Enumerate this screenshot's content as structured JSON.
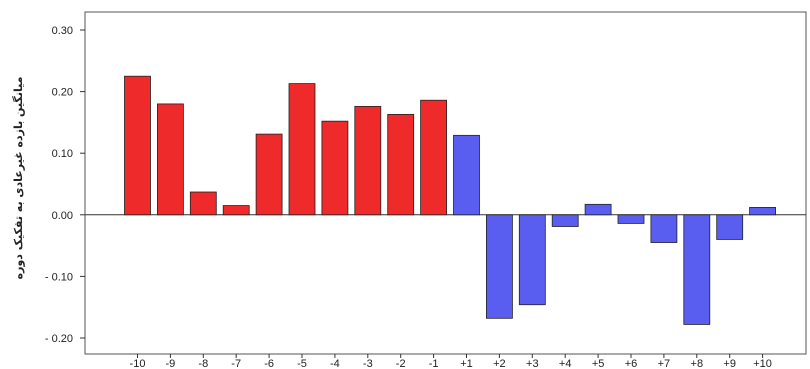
{
  "chart_data": {
    "type": "bar",
    "title": "",
    "xlabel": "",
    "ylabel": "میانگین بازده غیرعادی به تفکیک دوره",
    "ylim": [
      -0.22,
      0.32
    ],
    "yticks": [
      0.3,
      0.2,
      0.1,
      0.0,
      -0.1,
      -0.2
    ],
    "ytick_labels": [
      "0.30",
      "0.20",
      "0.10",
      "0.00",
      "- 0.10",
      "- 0.20"
    ],
    "grid": false,
    "categories": [
      "-10",
      "-9",
      "-8",
      "-7",
      "-6",
      "-5",
      "-4",
      "-3",
      "-2",
      "-1",
      "+1",
      "+2",
      "+3",
      "+4",
      "+5",
      "+6",
      "+7",
      "+8",
      "+9",
      "+10"
    ],
    "values": [
      0.225,
      0.18,
      0.037,
      0.015,
      0.131,
      0.213,
      0.152,
      0.176,
      0.163,
      0.186,
      0.129,
      -0.168,
      -0.146,
      -0.019,
      0.017,
      -0.014,
      -0.045,
      -0.178,
      -0.04,
      0.012
    ],
    "colors": {
      "pre_event": "#ee2a2a",
      "post_event": "#5a5ef0",
      "outline": "#222222"
    }
  }
}
